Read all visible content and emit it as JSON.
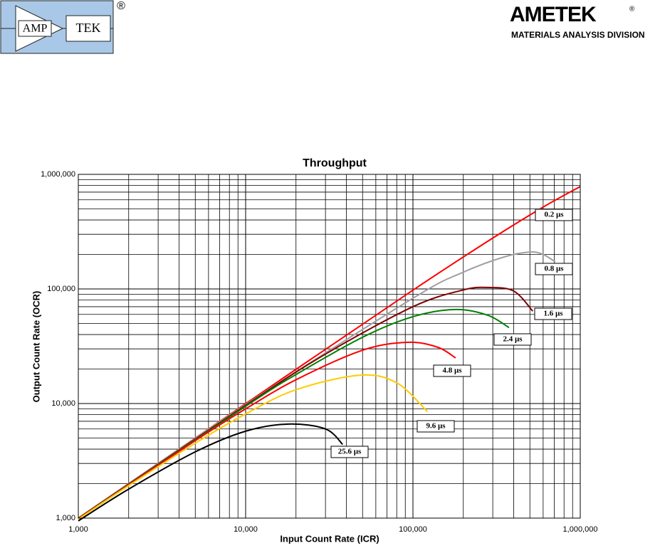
{
  "header": {
    "left_logo": {
      "left_text": "AMP",
      "right_text": "TEK",
      "mark": "®"
    },
    "right_logo": {
      "name": "AMETEK",
      "mark": "®",
      "division": "MATERIALS ANALYSIS DIVISION"
    }
  },
  "chart_data": {
    "type": "line",
    "title": "Throughput",
    "x_label": "Input Count Rate (ICR)",
    "y_label": "Output Count Rate (OCR)",
    "xscale": "log",
    "yscale": "log",
    "grid": true,
    "minor_grid": true,
    "xlim": [
      1000,
      1000000
    ],
    "ylim": [
      1000,
      1000000
    ],
    "xticks": [
      {
        "value": 1000,
        "label": "1,000"
      },
      {
        "value": 10000,
        "label": "10,000"
      },
      {
        "value": 100000,
        "label": "100,000"
      },
      {
        "value": 1000000,
        "label": "1,000,000"
      }
    ],
    "yticks": [
      {
        "value": 1000,
        "label": "1,000"
      },
      {
        "value": 10000,
        "label": "10,000"
      },
      {
        "value": 100000,
        "label": "100,000"
      },
      {
        "value": 1000000,
        "label": "1,000,000"
      }
    ],
    "series": [
      {
        "name": "0.2 µs",
        "color": "#ff0000",
        "x": [
          1000,
          10000,
          100000,
          300000,
          600000,
          1000000
        ],
        "values": [
          1000,
          9980,
          97600,
          278000,
          518000,
          783000
        ]
      },
      {
        "name": "0.8 µs",
        "color": "#a0a0a0",
        "x": [
          1000,
          10000,
          100000,
          200000,
          350000,
          500000,
          600000,
          710000
        ],
        "values": [
          998,
          9800,
          83000,
          140000,
          190000,
          210000,
          200000,
          172000
        ]
      },
      {
        "name": "1.6 µs",
        "color": "#800000",
        "x": [
          1000,
          10000,
          30000,
          100000,
          200000,
          280000,
          400000,
          520000
        ],
        "values": [
          996,
          9650,
          27000,
          70000,
          98000,
          103000,
          95900,
          64000
        ]
      },
      {
        "name": "2.4 µs",
        "color": "#008000",
        "x": [
          1000,
          10000,
          20000,
          50000,
          100000,
          180000,
          280000,
          375000
        ],
        "values": [
          994,
          9460,
          17900,
          37900,
          57300,
          66200,
          59000,
          46000
        ]
      },
      {
        "name": "4.8 µs",
        "color": "#ff0000",
        "x": [
          1000,
          5000,
          10000,
          20000,
          50000,
          93000,
          140000,
          180000
        ],
        "values": [
          989,
          4740,
          8980,
          16130,
          29200,
          34200,
          31060,
          25000
        ]
      },
      {
        "name": "9.6 µs",
        "color": "#ffcc00",
        "x": [
          1000,
          2000,
          5000,
          10000,
          20000,
          48000,
          80000,
          122000
        ],
        "values": [
          979,
          1920,
          4510,
          8120,
          13200,
          17660,
          15160,
          8500
        ]
      },
      {
        "name": "25.6 µs",
        "color": "#000000",
        "x": [
          1000,
          2000,
          5000,
          10000,
          18000,
          30000,
          38000
        ],
        "values": [
          946,
          1790,
          3786,
          5735,
          6622,
          6000,
          4400
        ]
      }
    ]
  }
}
